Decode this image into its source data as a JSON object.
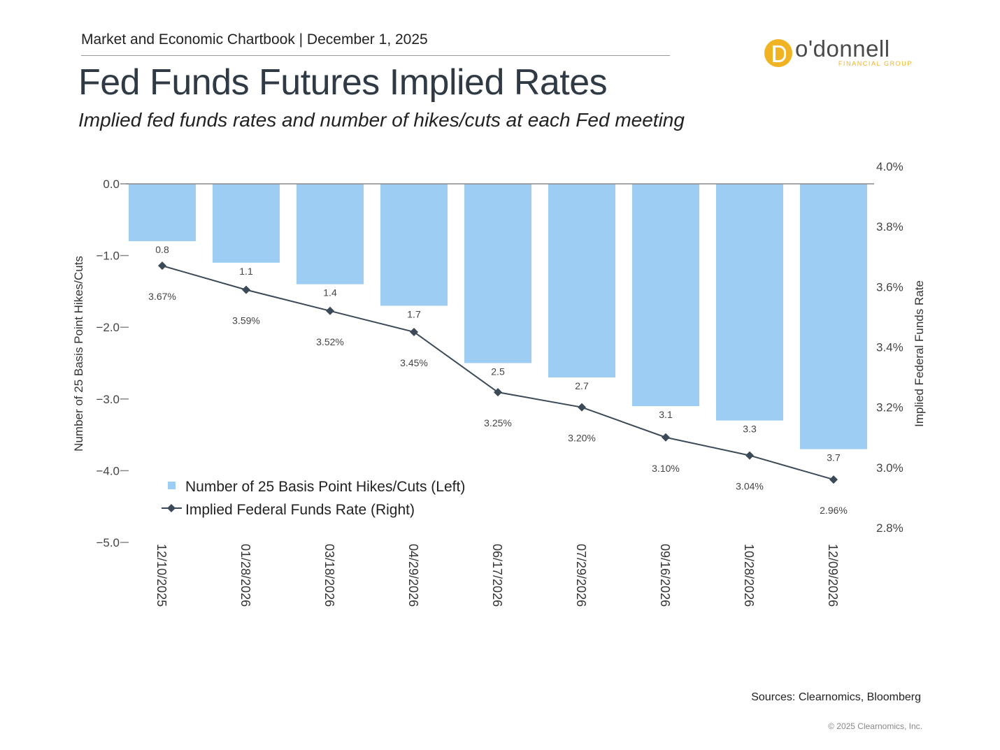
{
  "header": {
    "chartbook_line": "Market and Economic Chartbook | December 1, 2025",
    "title": "Fed Funds Futures Implied Rates",
    "subtitle": "Implied fed funds rates and number of hikes/cuts at each Fed meeting"
  },
  "logo": {
    "name": "o'donnell",
    "tagline": "FINANCIAL GROUP",
    "mark_icon": "o-donnell-d-logo-icon",
    "brand_color": "#f0b323"
  },
  "chart_data": {
    "type": "bar+line",
    "categories": [
      "12/10/2025",
      "01/28/2026",
      "03/18/2026",
      "04/29/2026",
      "06/17/2026",
      "07/29/2026",
      "09/16/2026",
      "10/28/2026",
      "12/09/2026"
    ],
    "series": [
      {
        "name": "Number of 25 Basis Point Hikes/Cuts (Left)",
        "type": "bar",
        "axis": "left",
        "color": "#9dcdf2",
        "values": [
          -0.8,
          -1.1,
          -1.4,
          -1.7,
          -2.5,
          -2.7,
          -3.1,
          -3.3,
          -3.7
        ],
        "labels": [
          "0.8",
          "1.1",
          "1.4",
          "1.7",
          "2.5",
          "2.7",
          "3.1",
          "3.3",
          "3.7"
        ]
      },
      {
        "name": "Implied Federal Funds Rate (Right)",
        "type": "line",
        "axis": "right",
        "color": "#3c4a57",
        "marker": "diamond",
        "values": [
          3.67,
          3.59,
          3.52,
          3.45,
          3.25,
          3.2,
          3.1,
          3.04,
          2.96
        ],
        "labels": [
          "3.67%",
          "3.59%",
          "3.52%",
          "3.45%",
          "3.25%",
          "3.20%",
          "3.10%",
          "3.04%",
          "2.96%"
        ]
      }
    ],
    "left_axis": {
      "label": "Number of 25 Basis Point Hikes/Cuts",
      "range": [
        -5.0,
        0.0
      ],
      "ticks": [
        0.0,
        -1.0,
        -2.0,
        -3.0,
        -4.0,
        -5.0
      ],
      "tick_labels": [
        "0.0",
        "−1.0",
        "−2.0",
        "−3.0",
        "−4.0",
        "−5.0"
      ]
    },
    "right_axis": {
      "label": "Implied Federal Funds Rate",
      "range": [
        2.8,
        4.0
      ],
      "ticks": [
        4.0,
        3.8,
        3.6,
        3.4,
        3.2,
        3.0,
        2.8
      ],
      "tick_labels": [
        "4.0%",
        "3.8%",
        "3.6%",
        "3.4%",
        "3.2%",
        "3.0%",
        "2.8%"
      ]
    },
    "grid": false,
    "legend_position": "bottom-left inside plot"
  },
  "footer": {
    "sources": "Sources: Clearnomics, Bloomberg",
    "copyright": "© 2025 Clearnomics, Inc."
  }
}
